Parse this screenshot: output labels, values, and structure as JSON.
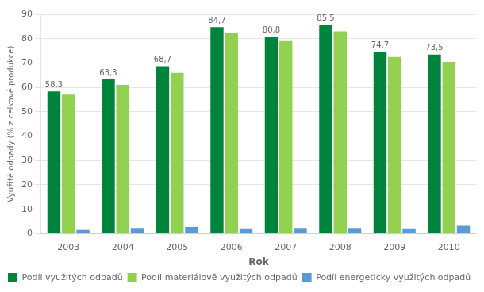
{
  "chart_data": {
    "type": "bar",
    "categories": [
      "2003",
      "2004",
      "2005",
      "2006",
      "2007",
      "2008",
      "2009",
      "2010"
    ],
    "series": [
      {
        "name": "Podíl využitých odpadů",
        "color": "#00843D",
        "values": [
          58.3,
          63.3,
          68.7,
          84.7,
          80.8,
          85.5,
          74.7,
          73.5
        ],
        "data_labels": true,
        "value_labels": [
          "58,3",
          "63,3",
          "68,7",
          "84,7",
          "80,8",
          "85,5",
          "74,7",
          "73,5"
        ]
      },
      {
        "name": "Podíl materiálově využitých odpadů",
        "color": "#92D050",
        "values": [
          57.0,
          61.0,
          66.0,
          82.5,
          79.0,
          83.0,
          72.5,
          70.5
        ]
      },
      {
        "name": "Podíl energeticky využitých odpadů",
        "color": "#5B9BD5",
        "values": [
          1.5,
          2.3,
          2.7,
          2.2,
          2.3,
          2.3,
          2.2,
          3.2
        ]
      }
    ],
    "xlabel": "Rok",
    "ylabel": "Využité odpady (% z celkové produkce)",
    "ylim": [
      0,
      90
    ],
    "yticks": [
      0,
      10,
      20,
      30,
      40,
      50,
      60,
      70,
      80,
      90
    ],
    "grid": true,
    "legend": "bottom"
  }
}
